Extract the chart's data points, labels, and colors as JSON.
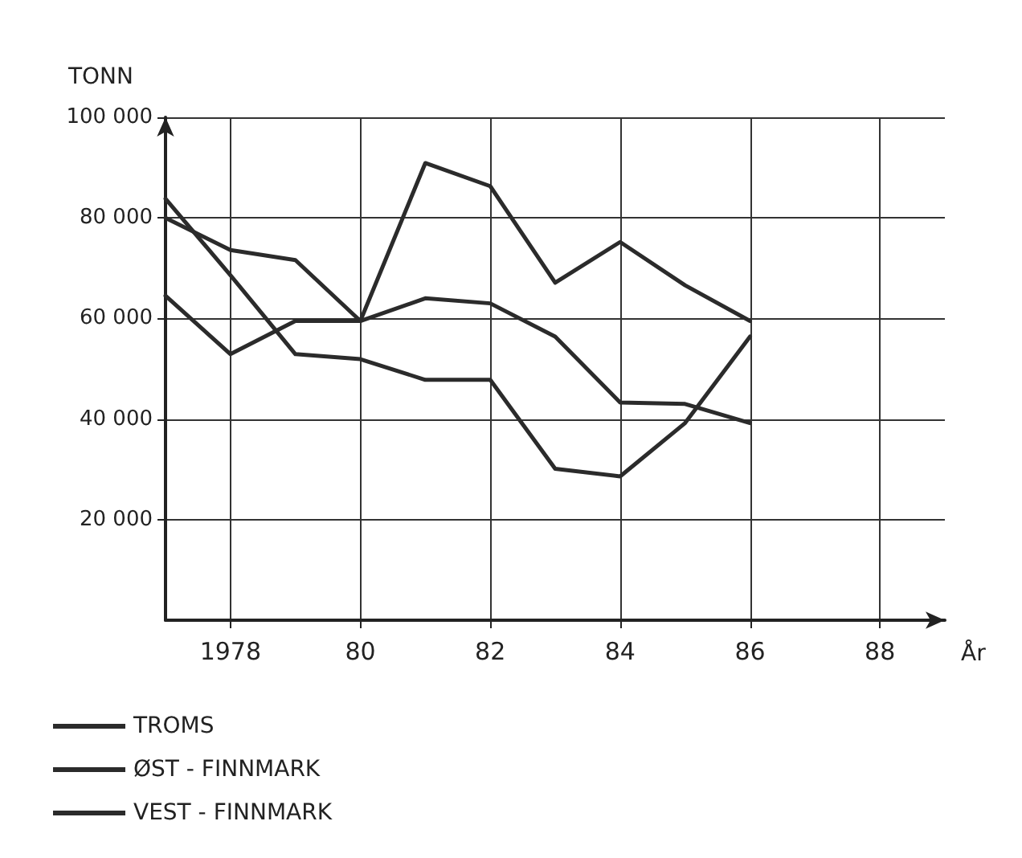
{
  "chart_data": {
    "type": "line",
    "xlabel": "År",
    "ylabel": "TONN",
    "x": [
      1977,
      1978,
      1979,
      1980,
      1981,
      1982,
      1983,
      1984,
      1985,
      1986
    ],
    "series": [
      {
        "name": "TROMS",
        "color": "#2b2b2b",
        "values": [
          80000,
          73600,
          71600,
          59500,
          90900,
          86300,
          67100,
          75200,
          66600,
          59500
        ]
      },
      {
        "name": "ØST - FINNMARK",
        "color": "#2b2b2b",
        "values": [
          83800,
          68600,
          52900,
          51900,
          47800,
          47800,
          30100,
          28600,
          39200,
          56400
        ]
      },
      {
        "name": "VEST - FINNMARK",
        "color": "#2b2b2b",
        "values": [
          64500,
          52900,
          59500,
          59500,
          64000,
          63000,
          56400,
          43300,
          43000,
          39200
        ]
      }
    ],
    "xlim": [
      1977,
      1989
    ],
    "xticks": [
      {
        "value": 1978,
        "label": "1978"
      },
      {
        "value": 1980,
        "label": "80"
      },
      {
        "value": 1982,
        "label": "82"
      },
      {
        "value": 1984,
        "label": "84"
      },
      {
        "value": 1986,
        "label": "86"
      },
      {
        "value": 1988,
        "label": "88"
      }
    ],
    "ylim": [
      0,
      100000
    ],
    "yticks": [
      {
        "value": 20000,
        "label": "20 000"
      },
      {
        "value": 40000,
        "label": "40 000"
      },
      {
        "value": 60000,
        "label": "60 000"
      },
      {
        "value": 80000,
        "label": "80 000"
      },
      {
        "value": 100000,
        "label": "100 000"
      }
    ],
    "grid": true,
    "legend": "bottom left",
    "marker": "none",
    "line_style": "solid"
  }
}
